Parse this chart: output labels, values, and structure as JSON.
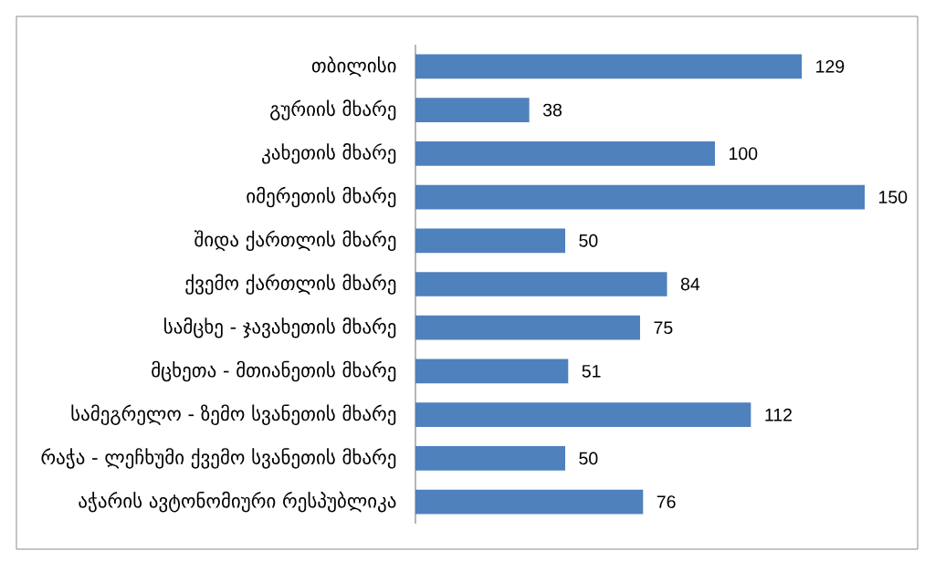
{
  "chart_data": {
    "type": "bar",
    "orientation": "horizontal",
    "categories": [
      "თბილისი",
      "გურიის მხარე",
      "კახეთის მხარე",
      "იმერეთის მხარე",
      "შიდა ქართლის მხარე",
      "ქვემო ქართლის მხარე",
      "სამცხე - ჯავახეთის მხარე",
      "მცხეთა - მთიანეთის მხარე",
      "სამეგრელო - ზემო სვანეთის მხარე",
      "რაჭა - ლეჩხუმი ქვემო სვანეთის მხარე",
      "აჭარის ავტონომიური რესპუბლიკა"
    ],
    "values": [
      129,
      38,
      100,
      150,
      50,
      84,
      75,
      51,
      112,
      50,
      76
    ],
    "color": "#4f81bd",
    "data_labels": true,
    "tick_labels": "y"
  }
}
